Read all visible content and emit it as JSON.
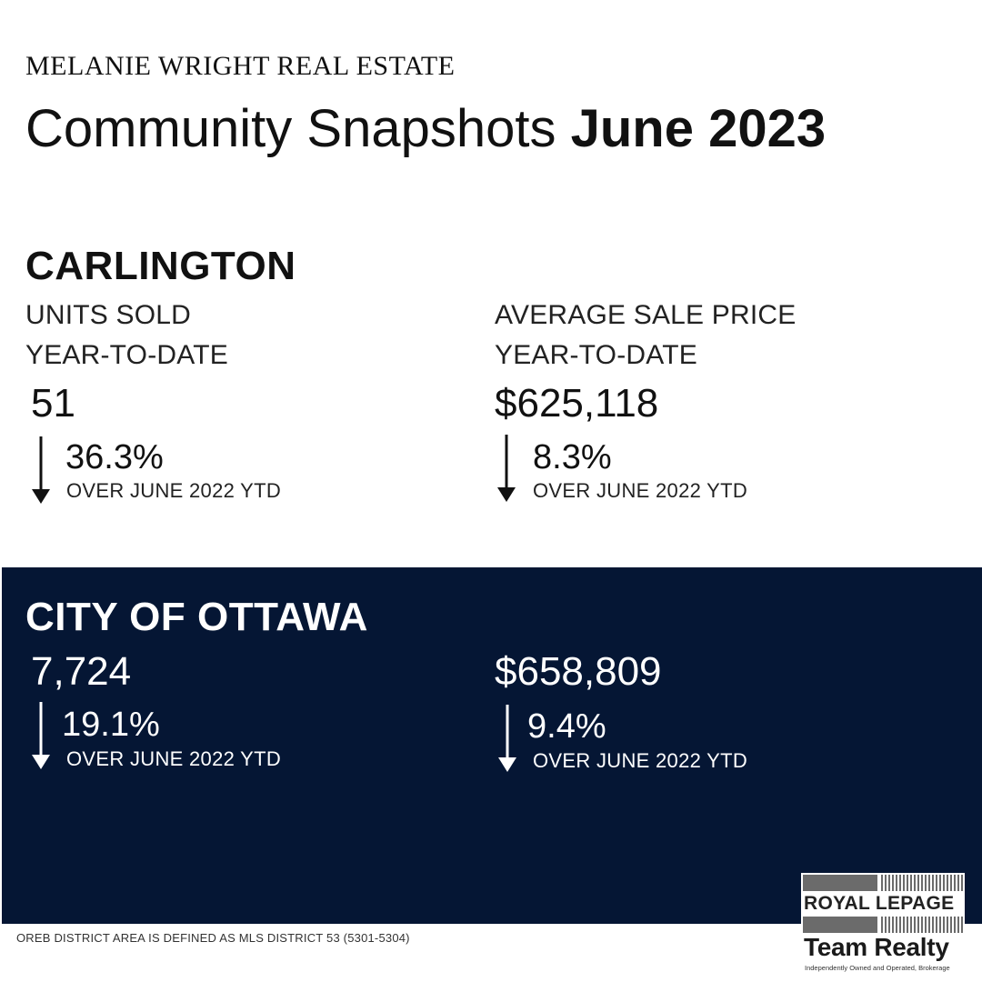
{
  "header": {
    "brand": "MELANIE WRIGHT REAL ESTATE",
    "title_regular": "Community Snapshots",
    "title_bold": "June 2023"
  },
  "community": {
    "name": "CARLINGTON",
    "units": {
      "label": "UNITS SOLD",
      "sub_label": "YEAR-TO-DATE",
      "value": "51",
      "change": "36.3%",
      "direction": "down",
      "comparison": "OVER JUNE 2022 YTD"
    },
    "price": {
      "label": "AVERAGE SALE PRICE",
      "sub_label": "YEAR-TO-DATE",
      "value": "$625,118",
      "change": "8.3%",
      "direction": "down",
      "comparison": "OVER JUNE 2022 YTD"
    }
  },
  "city": {
    "name": "CITY OF OTTAWA",
    "background_color": "#051634",
    "units": {
      "value": "7,724",
      "change": "19.1%",
      "direction": "down",
      "comparison": "OVER JUNE 2022 YTD"
    },
    "price": {
      "value": "$658,809",
      "change": "9.4%",
      "direction": "down",
      "comparison": "OVER JUNE 2022 YTD"
    }
  },
  "footnote": "OREB DISTRICT AREA IS DEFINED AS MLS DISTRICT 53 (5301-5304)",
  "logo": {
    "line1": "ROYAL LEPAGE",
    "line2": "Team Realty",
    "tagline": "Independently Owned and Operated, Brokerage"
  },
  "icons": {
    "change_arrow": "arrow-down-icon"
  }
}
